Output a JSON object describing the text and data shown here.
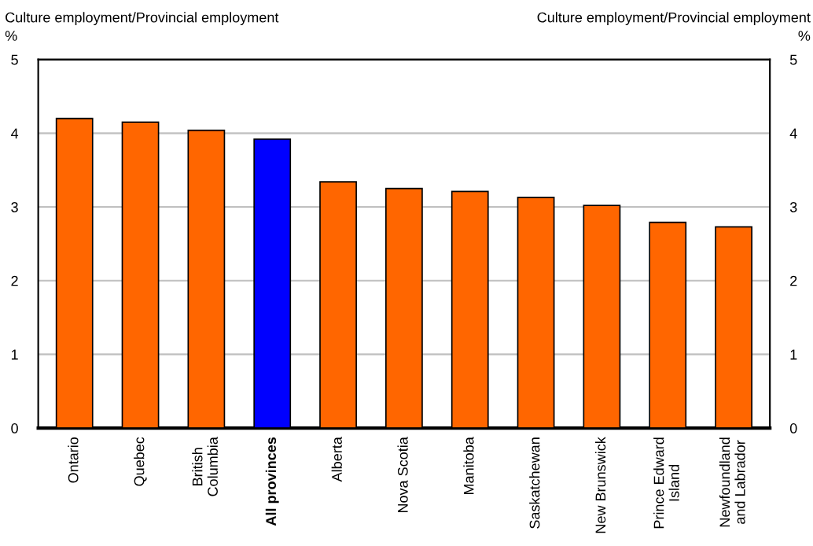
{
  "chart_data": {
    "type": "bar",
    "categories": [
      "Ontario",
      "Quebec",
      "British\nColumbia",
      "All provinces",
      "Alberta",
      "Nova Scotia",
      "Manitoba",
      "Saskatchewan",
      "New Brunswick",
      "Prince Edward\nIsland",
      "Newfoundland\nand Labrador"
    ],
    "values": [
      4.2,
      4.15,
      4.04,
      3.92,
      3.34,
      3.25,
      3.21,
      3.13,
      3.02,
      2.79,
      2.73
    ],
    "colors": [
      "#ff6600",
      "#ff6600",
      "#ff6600",
      "#0000ff",
      "#ff6600",
      "#ff6600",
      "#ff6600",
      "#ff6600",
      "#ff6600",
      "#ff6600",
      "#ff6600"
    ],
    "ylabel": "Culture employment/Provincial employment\n%",
    "y2label": "Culture employment/Provincial employment\n%",
    "ylim": [
      0,
      5
    ],
    "yticks": [
      0,
      1,
      2,
      3,
      4,
      5
    ],
    "y2lim": [
      0,
      5
    ],
    "y2ticks": [
      0,
      1,
      2,
      3,
      4,
      5
    ],
    "grid": "y",
    "legend": false
  }
}
